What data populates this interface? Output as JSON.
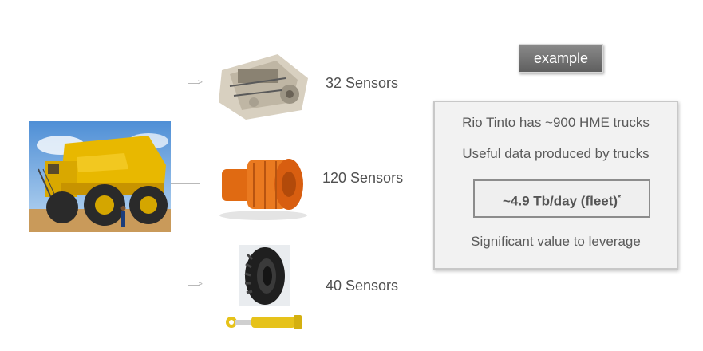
{
  "components": [
    {
      "name": "engine",
      "label": "32 Sensors"
    },
    {
      "name": "wheel-motor",
      "label": "120 Sensors"
    },
    {
      "name": "tire-and-cylinder",
      "label": "40 Sensors"
    }
  ],
  "badge": {
    "label": "example"
  },
  "panel": {
    "line1": "Rio Tinto has ~900 HME trucks",
    "line2": "Useful data produced by trucks",
    "volume": "~4.9 Tb/day (fleet)",
    "volume_mark": "*",
    "line3": "Significant value to leverage"
  },
  "colors": {
    "truck_yellow": "#e8b800",
    "motor_orange": "#e8701a",
    "panel_bg": "#f2f2f2",
    "badge_bg": "#6e6e6e"
  }
}
